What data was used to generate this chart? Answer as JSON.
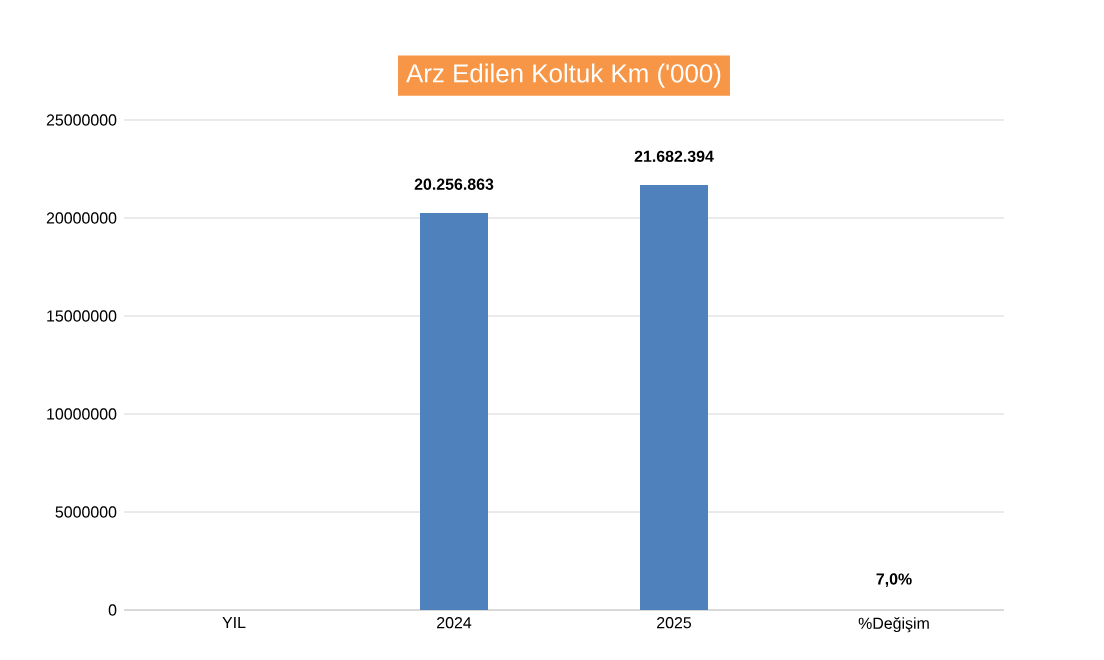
{
  "chart_data": {
    "type": "bar",
    "title": "Arz Edilen Koltuk Km ('000)",
    "categories": [
      "YIL",
      "2024",
      "2025",
      "%Değişim"
    ],
    "values": [
      null,
      20256863,
      21682394,
      7.0
    ],
    "value_labels": [
      null,
      "20.256.863",
      "21.682.394",
      "7,0%"
    ],
    "color": "#4f81bd",
    "ylim": [
      0,
      25000000
    ],
    "yticks": [
      0,
      5000000,
      10000000,
      15000000,
      20000000,
      25000000
    ],
    "grid": "y"
  }
}
